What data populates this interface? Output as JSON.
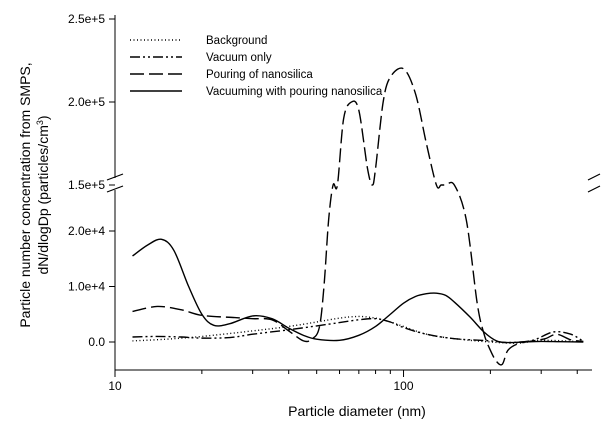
{
  "chart_data": {
    "type": "line",
    "xlabel": "Particle diameter (nm)",
    "ylabel_line1": "Particle number concentration from SMPS,",
    "ylabel_line2_prefix": "dN/dlogDp (particles/cm",
    "ylabel_line2_sup": "3",
    "ylabel_line2_suffix": ")",
    "x_scale": "log",
    "xlim": [
      10,
      450
    ],
    "x_ticks": [
      {
        "value": 10,
        "label": "10"
      },
      {
        "value": 100,
        "label": "100"
      }
    ],
    "y_axis_break": true,
    "y_lower_range": [
      -5000,
      25000
    ],
    "y_upper_range": [
      145000,
      250000
    ],
    "y_ticks": [
      {
        "value": 0,
        "label": "0.0"
      },
      {
        "value": 10000,
        "label": "1.0e+4"
      },
      {
        "value": 20000,
        "label": "2.0e+4"
      },
      {
        "value": 150000,
        "label": "1.5e+5"
      },
      {
        "value": 200000,
        "label": "2.0e+5"
      },
      {
        "value": 250000,
        "label": "2.5e+5"
      }
    ],
    "legend_position": "top-left",
    "series": [
      {
        "name": "Background",
        "dash": "1,2.5",
        "x": [
          11.5,
          15,
          20,
          30,
          40,
          50,
          60,
          70,
          80,
          90,
          100,
          120,
          150,
          200,
          250,
          300,
          400
        ],
        "y": [
          200,
          500,
          1000,
          2000,
          2800,
          3600,
          4300,
          4600,
          4300,
          3600,
          2800,
          1400,
          600,
          0,
          -200,
          300,
          100
        ]
      },
      {
        "name": "Vacuum only",
        "dash": "10,3,2,3,2,3",
        "x": [
          11.5,
          14,
          17,
          20,
          25,
          30,
          40,
          50,
          60,
          70,
          80,
          90,
          100,
          120,
          150,
          200,
          230,
          280,
          330,
          380,
          420
        ],
        "y": [
          900,
          1000,
          900,
          700,
          800,
          1400,
          2200,
          2900,
          3500,
          4000,
          4200,
          3600,
          2600,
          1400,
          600,
          200,
          -100,
          300,
          1800,
          1400,
          100
        ]
      },
      {
        "name": "Pouring of nanosilica",
        "dash": "14,5",
        "x": [
          11.5,
          14,
          17,
          20,
          26,
          30,
          35,
          40,
          45,
          48,
          51,
          53,
          55,
          57,
          59,
          62,
          66,
          70,
          75,
          78,
          80,
          85,
          90,
          100,
          110,
          120,
          130,
          135,
          140,
          150,
          165,
          180,
          190,
          200,
          210,
          220,
          230,
          250,
          280,
          310,
          340,
          380,
          420
        ],
        "y": [
          5500,
          6400,
          5800,
          4800,
          4400,
          4200,
          4000,
          2000,
          200,
          500,
          2500,
          10000,
          22000,
          60000,
          130000,
          190000,
          200000,
          195000,
          160000,
          150000,
          160000,
          200000,
          215000,
          220000,
          205000,
          175000,
          150000,
          142000,
          100000,
          55000,
          22000,
          7000,
          1500,
          -1500,
          -3500,
          -4000,
          -1500,
          -300,
          200,
          600,
          1400,
          400,
          100
        ]
      },
      {
        "name": "Vacuuming with pouring nanosilica",
        "dash": "",
        "x": [
          11.5,
          13,
          14.5,
          16,
          18,
          20,
          22,
          25,
          30,
          35,
          40,
          45,
          50,
          60,
          70,
          80,
          90,
          100,
          110,
          120,
          130,
          140,
          150,
          170,
          190,
          210,
          230,
          260,
          300,
          350,
          420
        ],
        "y": [
          15500,
          17500,
          18500,
          16500,
          10000,
          5000,
          3000,
          3300,
          4700,
          4200,
          2500,
          1200,
          500,
          300,
          1200,
          2800,
          5000,
          7000,
          8200,
          8700,
          8800,
          8400,
          7200,
          4500,
          1800,
          200,
          -100,
          0,
          100,
          50,
          0
        ]
      }
    ]
  }
}
